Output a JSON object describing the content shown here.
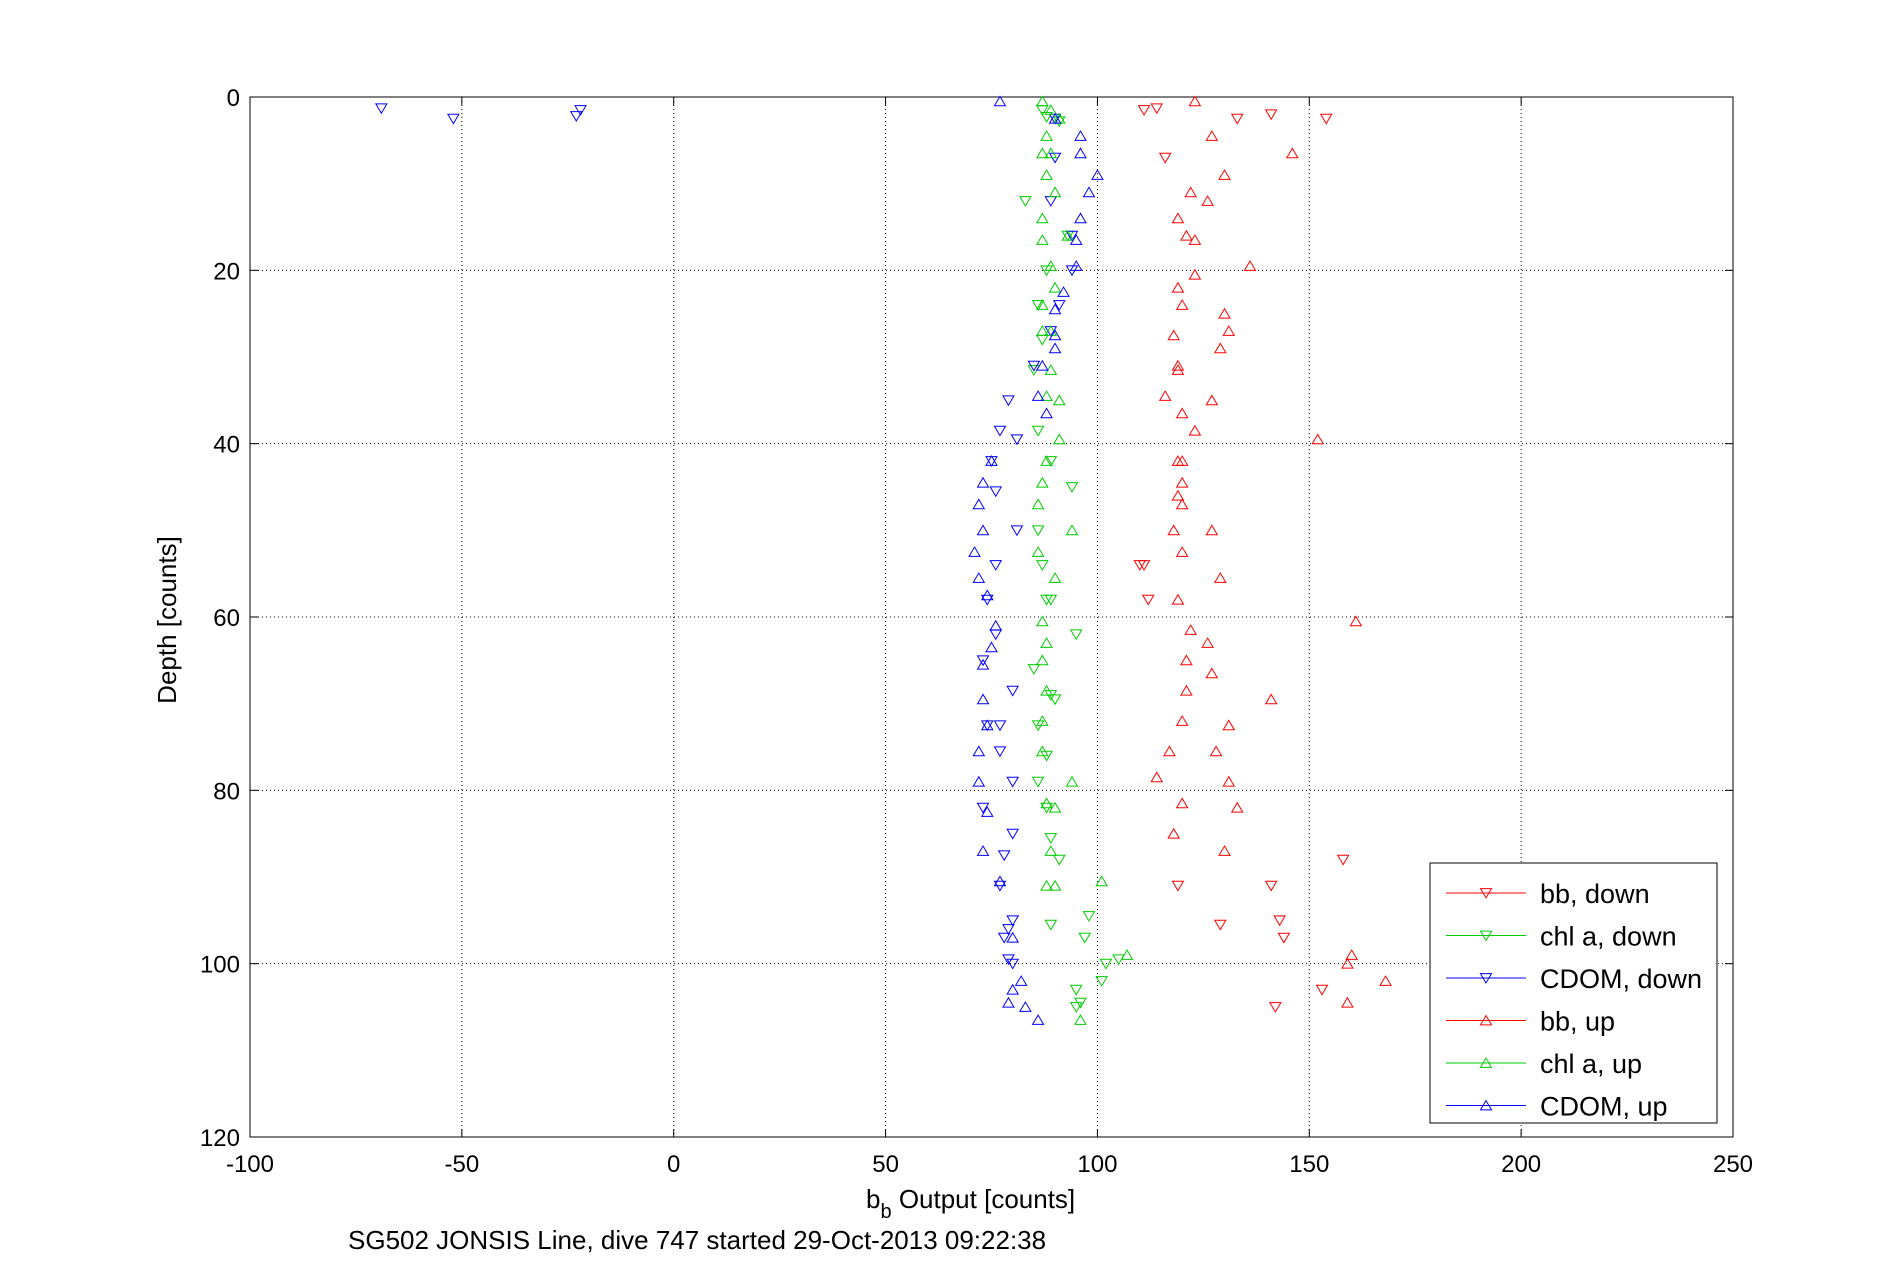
{
  "chart_data": {
    "type": "scatter",
    "title": "",
    "xlabel": "b",
    "xlabel_sub": "b",
    "xlabel_rest": " Output [counts]",
    "ylabel": "Depth [counts]",
    "caption": "SG502 JONSIS Line, dive 747 started 29-Oct-2013 09:22:38",
    "xlim": [
      -100,
      250
    ],
    "ylim": [
      0,
      120
    ],
    "y_reversed": true,
    "grid": true,
    "grid_style": "dotted",
    "legend_position": "bottom-right",
    "x_ticks": [
      "-100",
      "-50",
      "0",
      "50",
      "100",
      "150",
      "200",
      "250"
    ],
    "y_ticks": [
      "0",
      "20",
      "40",
      "60",
      "80",
      "100",
      "120"
    ],
    "series": [
      {
        "name": "bb, down",
        "color": "#ff0000",
        "marker": "triangle-down",
        "points": [
          [
            111,
            1.5
          ],
          [
            114,
            1.3
          ],
          [
            141,
            2
          ],
          [
            133,
            2.5
          ],
          [
            154,
            2.5
          ],
          [
            116,
            7
          ],
          [
            111,
            54
          ],
          [
            112,
            58
          ],
          [
            119,
            91
          ],
          [
            141,
            91
          ],
          [
            129,
            95.5
          ],
          [
            143,
            95
          ],
          [
            144,
            97
          ],
          [
            158,
            88
          ],
          [
            153,
            103
          ],
          [
            142,
            105
          ],
          [
            110,
            54
          ]
        ]
      },
      {
        "name": "chl a, down",
        "color": "#00cc00",
        "marker": "triangle-down",
        "points": [
          [
            87,
            1.5
          ],
          [
            88,
            2.3
          ],
          [
            91,
            2.8
          ],
          [
            83,
            12
          ],
          [
            93,
            16
          ],
          [
            88,
            20
          ],
          [
            86,
            24
          ],
          [
            87,
            28
          ],
          [
            85,
            31.5
          ],
          [
            86,
            38.5
          ],
          [
            89,
            42
          ],
          [
            94,
            45
          ],
          [
            86,
            50
          ],
          [
            87,
            54
          ],
          [
            89,
            58
          ],
          [
            88,
            58
          ],
          [
            95,
            62
          ],
          [
            85,
            66
          ],
          [
            89,
            69
          ],
          [
            90,
            69.5
          ],
          [
            86,
            72.5
          ],
          [
            88,
            76
          ],
          [
            86,
            79
          ],
          [
            88,
            82
          ],
          [
            89,
            85.5
          ],
          [
            91,
            88
          ],
          [
            98,
            94.5
          ],
          [
            89,
            95.5
          ],
          [
            97,
            97
          ],
          [
            105,
            99.5
          ],
          [
            102,
            100
          ],
          [
            101,
            102
          ],
          [
            95,
            103
          ],
          [
            96,
            104.5
          ],
          [
            95,
            105
          ]
        ]
      },
      {
        "name": "CDOM, down",
        "color": "#0000ff",
        "marker": "triangle-down",
        "points": [
          [
            -69,
            1.3
          ],
          [
            -52,
            2.5
          ],
          [
            -22,
            1.5
          ],
          [
            -23,
            2.2
          ],
          [
            90,
            2.5
          ],
          [
            90,
            7
          ],
          [
            89,
            12
          ],
          [
            94,
            16
          ],
          [
            94,
            20
          ],
          [
            91,
            24
          ],
          [
            89,
            27
          ],
          [
            85,
            31
          ],
          [
            79,
            35
          ],
          [
            77,
            38.5
          ],
          [
            81,
            39.5
          ],
          [
            75,
            42
          ],
          [
            76,
            45.5
          ],
          [
            81,
            50
          ],
          [
            76,
            54
          ],
          [
            74,
            58
          ],
          [
            76,
            62
          ],
          [
            73,
            65
          ],
          [
            80,
            68.5
          ],
          [
            74,
            72.5
          ],
          [
            77,
            72.5
          ],
          [
            77,
            75.5
          ],
          [
            80,
            79
          ],
          [
            73,
            82
          ],
          [
            80,
            85
          ],
          [
            78,
            87.5
          ],
          [
            77,
            91
          ],
          [
            80,
            95
          ],
          [
            79,
            96
          ],
          [
            78,
            97
          ],
          [
            79,
            99.5
          ],
          [
            80,
            100
          ]
        ]
      },
      {
        "name": "bb, up",
        "color": "#ff0000",
        "marker": "triangle-up",
        "points": [
          [
            123,
            0.5
          ],
          [
            127,
            4.5
          ],
          [
            146,
            6.5
          ],
          [
            130,
            9
          ],
          [
            122,
            11
          ],
          [
            126,
            12
          ],
          [
            119,
            14
          ],
          [
            121,
            16
          ],
          [
            123,
            16.5
          ],
          [
            136,
            19.5
          ],
          [
            123,
            20.5
          ],
          [
            119,
            22
          ],
          [
            120,
            24
          ],
          [
            130,
            25
          ],
          [
            118,
            27.5
          ],
          [
            131,
            27
          ],
          [
            129,
            29
          ],
          [
            119,
            31.5
          ],
          [
            119,
            31
          ],
          [
            116,
            34.5
          ],
          [
            127,
            35
          ],
          [
            120,
            36.5
          ],
          [
            123,
            38.5
          ],
          [
            152,
            39.5
          ],
          [
            119,
            42
          ],
          [
            120,
            42
          ],
          [
            120,
            44.5
          ],
          [
            119,
            46
          ],
          [
            120,
            47
          ],
          [
            118,
            50
          ],
          [
            127,
            50
          ],
          [
            120,
            52.5
          ],
          [
            129,
            55.5
          ],
          [
            119,
            58
          ],
          [
            161,
            60.5
          ],
          [
            122,
            61.5
          ],
          [
            126,
            63
          ],
          [
            121,
            65
          ],
          [
            127,
            66.5
          ],
          [
            141,
            69.5
          ],
          [
            121,
            68.5
          ],
          [
            120,
            72
          ],
          [
            131,
            72.5
          ],
          [
            117,
            75.5
          ],
          [
            128,
            75.5
          ],
          [
            114,
            78.5
          ],
          [
            131,
            79
          ],
          [
            120,
            81.5
          ],
          [
            133,
            82
          ],
          [
            118,
            85
          ],
          [
            130,
            87
          ],
          [
            160,
            99
          ],
          [
            159,
            100
          ],
          [
            168,
            102
          ],
          [
            159,
            104.5
          ]
        ]
      },
      {
        "name": "chl a, up",
        "color": "#00cc00",
        "marker": "triangle-up",
        "points": [
          [
            87,
            0.5
          ],
          [
            89,
            1.5
          ],
          [
            91,
            2.5
          ],
          [
            88,
            4.5
          ],
          [
            87,
            6.5
          ],
          [
            89,
            6.5
          ],
          [
            88,
            9
          ],
          [
            90,
            11
          ],
          [
            87,
            14
          ],
          [
            93,
            16
          ],
          [
            87,
            16.5
          ],
          [
            89,
            19.5
          ],
          [
            90,
            22
          ],
          [
            87,
            24
          ],
          [
            87,
            27
          ],
          [
            89,
            27
          ],
          [
            89,
            31.5
          ],
          [
            88,
            34.5
          ],
          [
            91,
            35
          ],
          [
            91,
            39.5
          ],
          [
            88,
            42
          ],
          [
            87,
            44.5
          ],
          [
            86,
            47
          ],
          [
            94,
            50
          ],
          [
            86,
            52.5
          ],
          [
            90,
            55.5
          ],
          [
            87,
            60.5
          ],
          [
            88,
            63
          ],
          [
            87,
            65
          ],
          [
            88,
            68.5
          ],
          [
            87,
            72
          ],
          [
            87,
            75.5
          ],
          [
            94,
            79
          ],
          [
            88,
            81.5
          ],
          [
            90,
            82
          ],
          [
            89,
            87
          ],
          [
            90,
            91
          ],
          [
            101,
            90.5
          ],
          [
            107,
            99
          ],
          [
            88,
            91
          ],
          [
            96,
            106.5
          ]
        ]
      },
      {
        "name": "CDOM, up",
        "color": "#0000ff",
        "marker": "triangle-up",
        "points": [
          [
            77,
            0.5
          ],
          [
            90,
            2.5
          ],
          [
            96,
            4.5
          ],
          [
            96,
            6.5
          ],
          [
            100,
            9
          ],
          [
            98,
            11
          ],
          [
            96,
            14
          ],
          [
            95,
            16.5
          ],
          [
            95,
            19.5
          ],
          [
            92,
            22.5
          ],
          [
            90,
            24.5
          ],
          [
            90,
            27.5
          ],
          [
            90,
            29
          ],
          [
            87,
            31
          ],
          [
            86,
            34.5
          ],
          [
            88,
            36.5
          ],
          [
            75,
            42
          ],
          [
            73,
            44.5
          ],
          [
            72,
            47
          ],
          [
            73,
            50
          ],
          [
            71,
            52.5
          ],
          [
            72,
            55.5
          ],
          [
            74,
            57.5
          ],
          [
            76,
            61
          ],
          [
            75,
            63.5
          ],
          [
            73,
            65.5
          ],
          [
            73,
            69.5
          ],
          [
            74,
            72.5
          ],
          [
            72,
            75.5
          ],
          [
            72,
            79
          ],
          [
            74,
            82.5
          ],
          [
            73,
            87
          ],
          [
            77,
            90.5
          ],
          [
            80,
            97
          ],
          [
            82,
            102
          ],
          [
            80,
            103
          ],
          [
            79,
            104.5
          ],
          [
            83,
            105
          ],
          [
            86,
            106.5
          ]
        ]
      }
    ]
  }
}
